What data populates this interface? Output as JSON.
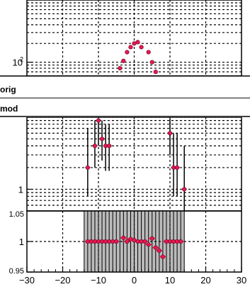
{
  "chart_data": [
    {
      "panel": "top",
      "type": "scatter",
      "y_scale": "log",
      "ylim": [
        60,
        1000
      ],
      "xlim": [
        -30,
        30
      ],
      "grid": true,
      "y_tick_labels": [
        {
          "base": "10",
          "exp": "2",
          "value": 100
        }
      ],
      "series": [
        {
          "points": [
            {
              "x": -5,
              "y": 55
            },
            {
              "x": -4,
              "y": 80
            },
            {
              "x": -3,
              "y": 105
            },
            {
              "x": -2,
              "y": 145
            },
            {
              "x": -1,
              "y": 175
            },
            {
              "x": 0,
              "y": 200
            },
            {
              "x": 1,
              "y": 210
            },
            {
              "x": 2,
              "y": 175
            },
            {
              "x": 4,
              "y": 145
            },
            {
              "x": 5,
              "y": 100
            },
            {
              "x": 6,
              "y": 70
            },
            {
              "x": 7,
              "y": 55
            }
          ]
        }
      ]
    },
    {
      "panel": "middle",
      "type": "scatter",
      "y_scale": "log",
      "ylim": [
        0.5,
        10
      ],
      "xlim": [
        -30,
        30
      ],
      "grid": true,
      "y_tick_labels": [
        {
          "text": "1",
          "value": 1
        }
      ],
      "series": [
        {
          "points": [
            {
              "x": -13,
              "y": 2.0,
              "err_low": 0.8,
              "err_high": 7.0
            },
            {
              "x": -11,
              "y": 4.0,
              "err_low": 2.0,
              "err_high": 9.0
            },
            {
              "x": -10,
              "y": 9.0,
              "err_low": 4.0,
              "err_high": 9.5
            },
            {
              "x": -9,
              "y": 5.0,
              "err_low": 2.5,
              "err_high": 9.0
            },
            {
              "x": -8,
              "y": 4.0,
              "err_low": 1.8,
              "err_high": 8.0
            },
            {
              "x": -7,
              "y": 4.0,
              "err_low": 1.8,
              "err_high": 8.0
            },
            {
              "x": 10,
              "y": 6.0,
              "err_low": 3.0,
              "err_high": 9.5
            },
            {
              "x": 11,
              "y": 2.0,
              "err_low": 0.8,
              "err_high": 6.0
            },
            {
              "x": 12,
              "y": 2.0,
              "err_low": 0.8,
              "err_high": 6.0
            },
            {
              "x": 14,
              "y": 1.0,
              "err_low": 0.4,
              "err_high": 4.0
            }
          ]
        }
      ]
    },
    {
      "panel": "ratio",
      "type": "scatter",
      "ylim": [
        0.95,
        1.05
      ],
      "xlim": [
        -30,
        30
      ],
      "grid": true,
      "y_tick_labels": [
        {
          "text": "0.95",
          "value": 0.95
        },
        {
          "text": "1",
          "value": 1
        },
        {
          "text": "1.05",
          "value": 1.05
        }
      ],
      "x_tick_labels": [
        "−30",
        "−20",
        "−10",
        "0",
        "10",
        "20",
        "30"
      ],
      "x_tick_values": [
        -30,
        -20,
        -10,
        0,
        10,
        20,
        30
      ],
      "band": {
        "x_start": -14,
        "x_end": 14,
        "bin_width": 1
      },
      "series": [
        {
          "points": [
            {
              "x": -13,
              "y": 1.0
            },
            {
              "x": -12,
              "y": 1.0
            },
            {
              "x": -11,
              "y": 1.0
            },
            {
              "x": -10,
              "y": 1.0
            },
            {
              "x": -9,
              "y": 1.0
            },
            {
              "x": -8,
              "y": 1.0
            },
            {
              "x": -7,
              "y": 1.0
            },
            {
              "x": -6,
              "y": 1.0
            },
            {
              "x": -5,
              "y": 1.0
            },
            {
              "x": -3,
              "y": 1.006
            },
            {
              "x": -2,
              "y": 1.0
            },
            {
              "x": -1,
              "y": 1.004
            },
            {
              "x": 0,
              "y": 1.002
            },
            {
              "x": 1,
              "y": 1.0
            },
            {
              "x": 2,
              "y": 1.0
            },
            {
              "x": 3,
              "y": 1.0
            },
            {
              "x": 4,
              "y": 0.995
            },
            {
              "x": 5,
              "y": 1.005
            },
            {
              "x": 6,
              "y": 0.99
            },
            {
              "x": 7,
              "y": 0.985
            },
            {
              "x": 8,
              "y": 0.975
            },
            {
              "x": 9,
              "y": 1.0
            },
            {
              "x": 10,
              "y": 1.0
            },
            {
              "x": 11,
              "y": 1.0
            },
            {
              "x": 12,
              "y": 1.0
            },
            {
              "x": 13,
              "y": 1.0
            }
          ]
        }
      ]
    }
  ],
  "labels": {
    "orig": "orig",
    "mod": "mod"
  },
  "colors": {
    "marker": "#e8174f",
    "marker_edge": "#5a0a2a",
    "band": "#bbbbbb",
    "axis": "#000000"
  }
}
